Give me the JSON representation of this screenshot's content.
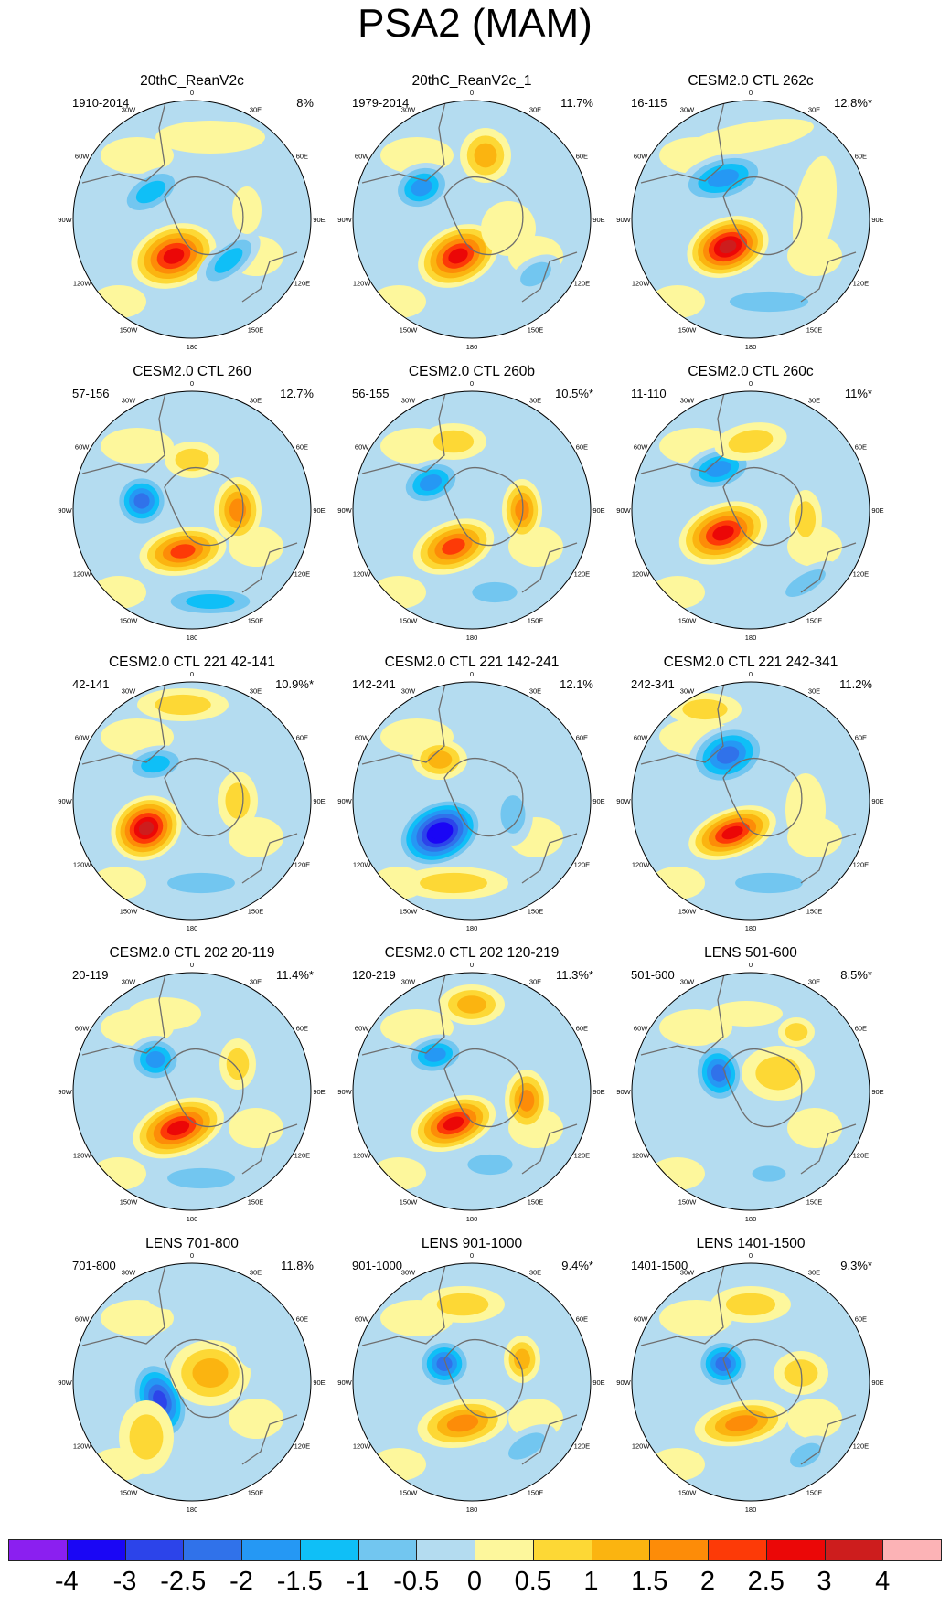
{
  "title": "PSA2 (MAM)",
  "colors": {
    "levels": [
      "#8b1ff0",
      "#1a06f5",
      "#2c44ea",
      "#3072ea",
      "#2598f4",
      "#0fbff7",
      "#72c6f0",
      "#b4dcf0",
      "#fdf79c",
      "#fdd835",
      "#fbb410",
      "#fd8c08",
      "#fd3a07",
      "#eb0707",
      "#cd1d1d",
      "#fcb3b6"
    ],
    "coast": "#6e6e6e",
    "outline": "#000000"
  },
  "colorbar": {
    "ticks": [
      "-4",
      "-3",
      "-2.5",
      "-2",
      "-1.5",
      "-1",
      "-0.5",
      "0",
      "0.5",
      "1",
      "1.5",
      "2",
      "2.5",
      "3",
      "4"
    ]
  },
  "lon_labels": [
    "0",
    "30E",
    "60E",
    "90E",
    "120E",
    "150E",
    "180",
    "150W",
    "120W",
    "90W",
    "60W",
    "30W"
  ],
  "chart_data": {
    "type": "heatmap",
    "title": "PSA2 (MAM)",
    "colorbar_levels": [
      -4,
      -3,
      -2.5,
      -2,
      -1.5,
      -1,
      -0.5,
      0,
      0.5,
      1,
      1.5,
      2,
      2.5,
      3,
      4
    ],
    "panels": [
      {
        "title": "20thC_ReanV2c",
        "period": "1910-2014",
        "variance": "8%"
      },
      {
        "title": "20thC_ReanV2c_1",
        "period": "1979-2014",
        "variance": "11.7%"
      },
      {
        "title": "CESM2.0 CTL 262c",
        "period": "16-115",
        "variance": "12.8%*"
      },
      {
        "title": "CESM2.0 CTL 260",
        "period": "57-156",
        "variance": "12.7%"
      },
      {
        "title": "CESM2.0 CTL 260b",
        "period": "56-155",
        "variance": "10.5%*"
      },
      {
        "title": "CESM2.0 CTL 260c",
        "period": "11-110",
        "variance": "11%*"
      },
      {
        "title": "CESM2.0 CTL 221 42-141",
        "period": "42-141",
        "variance": "10.9%*"
      },
      {
        "title": "CESM2.0 CTL 221 142-241",
        "period": "142-241",
        "variance": "12.1%"
      },
      {
        "title": "CESM2.0 CTL 221 242-341",
        "period": "242-341",
        "variance": "11.2%"
      },
      {
        "title": "CESM2.0 CTL 202 20-119",
        "period": "20-119",
        "variance": "11.4%*"
      },
      {
        "title": "CESM2.0 CTL 202 120-219",
        "period": "120-219",
        "variance": "11.3%*"
      },
      {
        "title": "LENS 501-600",
        "period": "501-600",
        "variance": "8.5%*"
      },
      {
        "title": "LENS 701-800",
        "period": "701-800",
        "variance": "11.8%"
      },
      {
        "title": "LENS 901-1000",
        "period": "901-1000",
        "variance": "9.4%*"
      },
      {
        "title": "LENS 1401-1500",
        "period": "1401-1500",
        "variance": "9.3%*"
      }
    ]
  }
}
